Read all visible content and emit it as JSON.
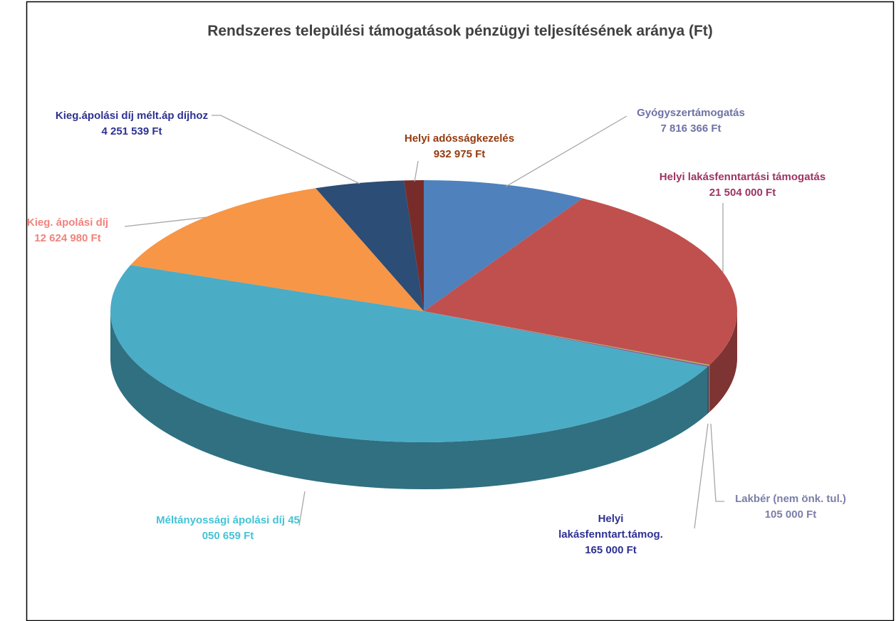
{
  "chart_data": {
    "type": "pie",
    "title": "Rendszeres települési támogatások pénzügyi teljesítésének aránya (Ft)",
    "categories": [
      "Gyógyszertámogatás",
      "Helyi lakásfenntartási támogatás",
      "Lakbér (nem önk. tul.)",
      "Helyi lakásfenntart.támog.",
      "Méltányossági ápolási díj",
      "Kieg. ápolási díj",
      "Kieg.ápolási díj mélt.áp díjhoz",
      "Helyi adósságkezelés"
    ],
    "values": [
      7816366,
      21504000,
      105000,
      165000,
      45050659,
      12624980,
      4251539,
      932975
    ],
    "value_labels": [
      "7 816 366 Ft",
      "21 504 000 Ft",
      "105 000 Ft",
      "165 000 Ft",
      "45 050 659 Ft",
      "12 624 980 Ft",
      "4 251 539 Ft",
      "932 975 Ft"
    ],
    "colors": [
      "#4f81bd",
      "#c0504d",
      "#9bbb59",
      "#8064a2",
      "#4bacc6",
      "#f79646",
      "#2c4d75",
      "#772c2a"
    ],
    "label_colors": [
      "#6e72a6",
      "#9e3463",
      "#7a7ea8",
      "#2e3192",
      "#45c3d6",
      "#f2827c",
      "#2e3192",
      "#943a0e"
    ]
  }
}
